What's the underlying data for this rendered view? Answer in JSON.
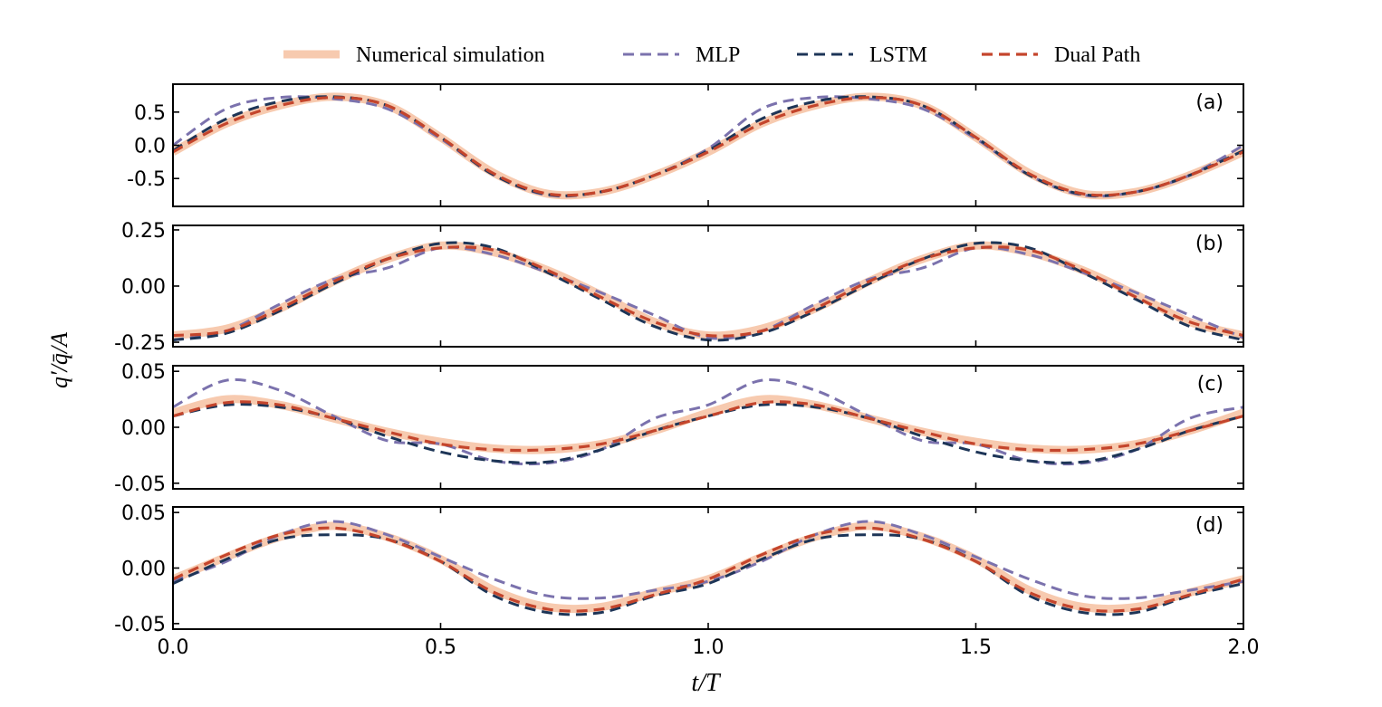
{
  "legend": {
    "items": [
      {
        "label": "Numerical simulation",
        "series": "numerical"
      },
      {
        "label": "MLP",
        "series": "mlp"
      },
      {
        "label": "LSTM",
        "series": "lstm"
      },
      {
        "label": "Dual Path",
        "series": "dual"
      }
    ]
  },
  "colors": {
    "numerical": "#f6c4a6",
    "mlp": "#7b72ad",
    "lstm": "#1d3557",
    "dual": "#c4452c"
  },
  "axes": {
    "xlabel": "t/T",
    "ylabel": "q′/q̄/A"
  },
  "chart_data": {
    "type": "line",
    "x_range": [
      0,
      2
    ],
    "x_ticks": [
      "0.0",
      "0.5",
      "1.0",
      "1.5",
      "2.0"
    ],
    "grid": false,
    "legend_position": "top",
    "panels": [
      {
        "tag": "(a)",
        "ylim": [
          -0.92,
          0.92
        ],
        "y_ticks": [
          {
            "v": 0.5,
            "label": "0.5"
          },
          {
            "v": 0.0,
            "label": "0.0"
          },
          {
            "v": -0.5,
            "label": "-0.5"
          }
        ],
        "series": [
          {
            "key": "numerical",
            "name": "Numerical simulation",
            "x": [
              0,
              0.1,
              0.2,
              0.3,
              0.4,
              0.5,
              0.6,
              0.7,
              0.8,
              0.9,
              1.0,
              1.1,
              1.2,
              1.3,
              1.4,
              1.5,
              1.6,
              1.7,
              1.8,
              1.9,
              2.0
            ],
            "y": [
              -0.1,
              0.33,
              0.6,
              0.73,
              0.6,
              0.12,
              -0.42,
              -0.73,
              -0.7,
              -0.45,
              -0.1,
              0.33,
              0.6,
              0.73,
              0.6,
              0.12,
              -0.42,
              -0.73,
              -0.7,
              -0.45,
              -0.1
            ]
          },
          {
            "key": "mlp",
            "name": "MLP",
            "x": [
              0,
              0.1,
              0.2,
              0.3,
              0.4,
              0.5,
              0.6,
              0.7,
              0.8,
              0.9,
              1.0,
              1.1,
              1.2,
              1.3,
              1.4,
              1.5,
              1.6,
              1.7,
              1.8,
              1.9,
              2.0
            ],
            "y": [
              0.0,
              0.55,
              0.72,
              0.7,
              0.55,
              0.1,
              -0.45,
              -0.75,
              -0.7,
              -0.45,
              -0.05,
              0.55,
              0.72,
              0.7,
              0.55,
              0.1,
              -0.45,
              -0.75,
              -0.7,
              -0.45,
              0.0
            ]
          },
          {
            "key": "lstm",
            "name": "LSTM",
            "x": [
              0,
              0.1,
              0.2,
              0.3,
              0.4,
              0.5,
              0.6,
              0.7,
              0.8,
              0.9,
              1.0,
              1.1,
              1.2,
              1.3,
              1.4,
              1.5,
              1.6,
              1.7,
              1.8,
              1.9,
              2.0
            ],
            "y": [
              -0.08,
              0.4,
              0.66,
              0.73,
              0.6,
              0.12,
              -0.45,
              -0.74,
              -0.7,
              -0.45,
              -0.08,
              0.4,
              0.66,
              0.73,
              0.6,
              0.12,
              -0.45,
              -0.74,
              -0.7,
              -0.45,
              -0.08
            ]
          },
          {
            "key": "dual",
            "name": "Dual Path",
            "x": [
              0,
              0.1,
              0.2,
              0.3,
              0.4,
              0.5,
              0.6,
              0.7,
              0.8,
              0.9,
              1.0,
              1.1,
              1.2,
              1.3,
              1.4,
              1.5,
              1.6,
              1.7,
              1.8,
              1.9,
              2.0
            ],
            "y": [
              -0.1,
              0.33,
              0.6,
              0.72,
              0.6,
              0.12,
              -0.43,
              -0.73,
              -0.7,
              -0.45,
              -0.1,
              0.33,
              0.6,
              0.72,
              0.6,
              0.12,
              -0.43,
              -0.73,
              -0.7,
              -0.45,
              -0.1
            ]
          }
        ]
      },
      {
        "tag": "(b)",
        "ylim": [
          -0.27,
          0.27
        ],
        "y_ticks": [
          {
            "v": 0.25,
            "label": "0.25"
          },
          {
            "v": 0.0,
            "label": "0.00"
          },
          {
            "v": -0.25,
            "label": "-0.25"
          }
        ],
        "series": [
          {
            "key": "numerical",
            "name": "Numerical simulation",
            "x": [
              0,
              0.1,
              0.2,
              0.3,
              0.4,
              0.5,
              0.6,
              0.7,
              0.8,
              0.9,
              1.0,
              1.1,
              1.2,
              1.3,
              1.4,
              1.5,
              1.6,
              1.7,
              1.8,
              1.9,
              2.0
            ],
            "y": [
              -0.22,
              -0.19,
              -0.1,
              0.02,
              0.12,
              0.18,
              0.15,
              0.07,
              -0.04,
              -0.16,
              -0.22,
              -0.19,
              -0.1,
              0.02,
              0.12,
              0.18,
              0.15,
              0.07,
              -0.04,
              -0.16,
              -0.22
            ]
          },
          {
            "key": "mlp",
            "name": "MLP",
            "x": [
              0,
              0.1,
              0.2,
              0.3,
              0.4,
              0.5,
              0.6,
              0.7,
              0.8,
              0.9,
              1.0,
              1.1,
              1.2,
              1.3,
              1.4,
              1.5,
              1.6,
              1.7,
              1.8,
              1.9,
              2.0
            ],
            "y": [
              -0.24,
              -0.2,
              -0.08,
              0.03,
              0.08,
              0.17,
              0.14,
              0.06,
              -0.03,
              -0.13,
              -0.23,
              -0.2,
              -0.08,
              0.03,
              0.08,
              0.17,
              0.14,
              0.06,
              -0.03,
              -0.13,
              -0.23
            ]
          },
          {
            "key": "lstm",
            "name": "LSTM",
            "x": [
              0,
              0.1,
              0.2,
              0.3,
              0.4,
              0.5,
              0.6,
              0.7,
              0.8,
              0.9,
              1.0,
              1.1,
              1.2,
              1.3,
              1.4,
              1.5,
              1.6,
              1.7,
              1.8,
              1.9,
              2.0
            ],
            "y": [
              -0.24,
              -0.21,
              -0.11,
              0.01,
              0.12,
              0.19,
              0.17,
              0.06,
              -0.06,
              -0.18,
              -0.24,
              -0.21,
              -0.11,
              0.01,
              0.12,
              0.19,
              0.17,
              0.06,
              -0.06,
              -0.18,
              -0.24
            ]
          },
          {
            "key": "dual",
            "name": "Dual Path",
            "x": [
              0,
              0.1,
              0.2,
              0.3,
              0.4,
              0.5,
              0.6,
              0.7,
              0.8,
              0.9,
              1.0,
              1.1,
              1.2,
              1.3,
              1.4,
              1.5,
              1.6,
              1.7,
              1.8,
              1.9,
              2.0
            ],
            "y": [
              -0.22,
              -0.2,
              -0.1,
              0.02,
              0.12,
              0.17,
              0.16,
              0.07,
              -0.05,
              -0.16,
              -0.22,
              -0.2,
              -0.1,
              0.02,
              0.12,
              0.17,
              0.16,
              0.07,
              -0.05,
              -0.16,
              -0.22
            ]
          }
        ]
      },
      {
        "tag": "(c)",
        "ylim": [
          -0.055,
          0.055
        ],
        "y_ticks": [
          {
            "v": 0.05,
            "label": "0.05"
          },
          {
            "v": 0.0,
            "label": "0.00"
          },
          {
            "v": -0.05,
            "label": "-0.05"
          }
        ],
        "series": [
          {
            "key": "numerical",
            "name": "Numerical simulation",
            "x": [
              0,
              0.1,
              0.2,
              0.3,
              0.4,
              0.5,
              0.6,
              0.7,
              0.8,
              0.9,
              1.0,
              1.1,
              1.2,
              1.3,
              1.4,
              1.5,
              1.6,
              1.7,
              1.8,
              1.9,
              2.0
            ],
            "y": [
              0.013,
              0.025,
              0.02,
              0.008,
              -0.004,
              -0.013,
              -0.019,
              -0.02,
              -0.015,
              -0.003,
              0.013,
              0.025,
              0.02,
              0.008,
              -0.004,
              -0.013,
              -0.019,
              -0.02,
              -0.015,
              -0.003,
              0.013
            ]
          },
          {
            "key": "mlp",
            "name": "MLP",
            "x": [
              0,
              0.1,
              0.2,
              0.3,
              0.4,
              0.5,
              0.6,
              0.7,
              0.8,
              0.9,
              1.0,
              1.1,
              1.2,
              1.3,
              1.4,
              1.5,
              1.6,
              1.7,
              1.8,
              1.9,
              2.0
            ],
            "y": [
              0.018,
              0.042,
              0.033,
              0.01,
              -0.012,
              -0.015,
              -0.03,
              -0.032,
              -0.02,
              0.008,
              0.02,
              0.042,
              0.033,
              0.01,
              -0.012,
              -0.015,
              -0.03,
              -0.032,
              -0.02,
              0.008,
              0.018
            ]
          },
          {
            "key": "lstm",
            "name": "LSTM",
            "x": [
              0,
              0.1,
              0.2,
              0.3,
              0.4,
              0.5,
              0.6,
              0.7,
              0.8,
              0.9,
              1.0,
              1.1,
              1.2,
              1.3,
              1.4,
              1.5,
              1.6,
              1.7,
              1.8,
              1.9,
              2.0
            ],
            "y": [
              0.01,
              0.02,
              0.018,
              0.008,
              -0.008,
              -0.022,
              -0.03,
              -0.031,
              -0.02,
              -0.003,
              0.01,
              0.02,
              0.018,
              0.008,
              -0.008,
              -0.022,
              -0.03,
              -0.031,
              -0.02,
              -0.003,
              0.01
            ]
          },
          {
            "key": "dual",
            "name": "Dual Path",
            "x": [
              0,
              0.1,
              0.2,
              0.3,
              0.4,
              0.5,
              0.6,
              0.7,
              0.8,
              0.9,
              1.0,
              1.1,
              1.2,
              1.3,
              1.4,
              1.5,
              1.6,
              1.7,
              1.8,
              1.9,
              2.0
            ],
            "y": [
              0.01,
              0.022,
              0.02,
              0.008,
              -0.004,
              -0.015,
              -0.02,
              -0.02,
              -0.015,
              -0.003,
              0.01,
              0.022,
              0.02,
              0.008,
              -0.004,
              -0.015,
              -0.02,
              -0.02,
              -0.015,
              -0.003,
              0.01
            ]
          }
        ]
      },
      {
        "tag": "(d)",
        "ylim": [
          -0.055,
          0.055
        ],
        "y_ticks": [
          {
            "v": 0.05,
            "label": "0.05"
          },
          {
            "v": 0.0,
            "label": "0.00"
          },
          {
            "v": -0.05,
            "label": "-0.05"
          }
        ],
        "series": [
          {
            "key": "numerical",
            "name": "Numerical simulation",
            "x": [
              0,
              0.1,
              0.2,
              0.3,
              0.4,
              0.5,
              0.6,
              0.7,
              0.8,
              0.9,
              1.0,
              1.1,
              1.2,
              1.3,
              1.4,
              1.5,
              1.6,
              1.7,
              1.8,
              1.9,
              2.0
            ],
            "y": [
              -0.01,
              0.01,
              0.028,
              0.038,
              0.028,
              0.008,
              -0.02,
              -0.035,
              -0.035,
              -0.022,
              -0.01,
              0.01,
              0.028,
              0.038,
              0.028,
              0.008,
              -0.02,
              -0.035,
              -0.035,
              -0.022,
              -0.01
            ]
          },
          {
            "key": "mlp",
            "name": "MLP",
            "x": [
              0,
              0.1,
              0.2,
              0.3,
              0.4,
              0.5,
              0.6,
              0.7,
              0.8,
              0.9,
              1.0,
              1.1,
              1.2,
              1.3,
              1.4,
              1.5,
              1.6,
              1.7,
              1.8,
              1.9,
              2.0
            ],
            "y": [
              -0.012,
              0.006,
              0.03,
              0.042,
              0.03,
              0.01,
              -0.01,
              -0.025,
              -0.027,
              -0.02,
              -0.012,
              0.006,
              0.03,
              0.042,
              0.03,
              0.01,
              -0.01,
              -0.025,
              -0.027,
              -0.02,
              -0.012
            ]
          },
          {
            "key": "lstm",
            "name": "LSTM",
            "x": [
              0,
              0.1,
              0.2,
              0.3,
              0.4,
              0.5,
              0.6,
              0.7,
              0.8,
              0.9,
              1.0,
              1.1,
              1.2,
              1.3,
              1.4,
              1.5,
              1.6,
              1.7,
              1.8,
              1.9,
              2.0
            ],
            "y": [
              -0.014,
              0.008,
              0.026,
              0.03,
              0.026,
              0.006,
              -0.025,
              -0.04,
              -0.04,
              -0.025,
              -0.014,
              0.008,
              0.026,
              0.03,
              0.026,
              0.006,
              -0.025,
              -0.04,
              -0.04,
              -0.025,
              -0.014
            ]
          },
          {
            "key": "dual",
            "name": "Dual Path",
            "x": [
              0,
              0.1,
              0.2,
              0.3,
              0.4,
              0.5,
              0.6,
              0.7,
              0.8,
              0.9,
              1.0,
              1.1,
              1.2,
              1.3,
              1.4,
              1.5,
              1.6,
              1.7,
              1.8,
              1.9,
              2.0
            ],
            "y": [
              -0.01,
              0.012,
              0.03,
              0.036,
              0.026,
              0.006,
              -0.022,
              -0.037,
              -0.037,
              -0.024,
              -0.01,
              0.012,
              0.03,
              0.036,
              0.026,
              0.006,
              -0.022,
              -0.037,
              -0.037,
              -0.024,
              -0.01
            ]
          }
        ]
      }
    ]
  }
}
